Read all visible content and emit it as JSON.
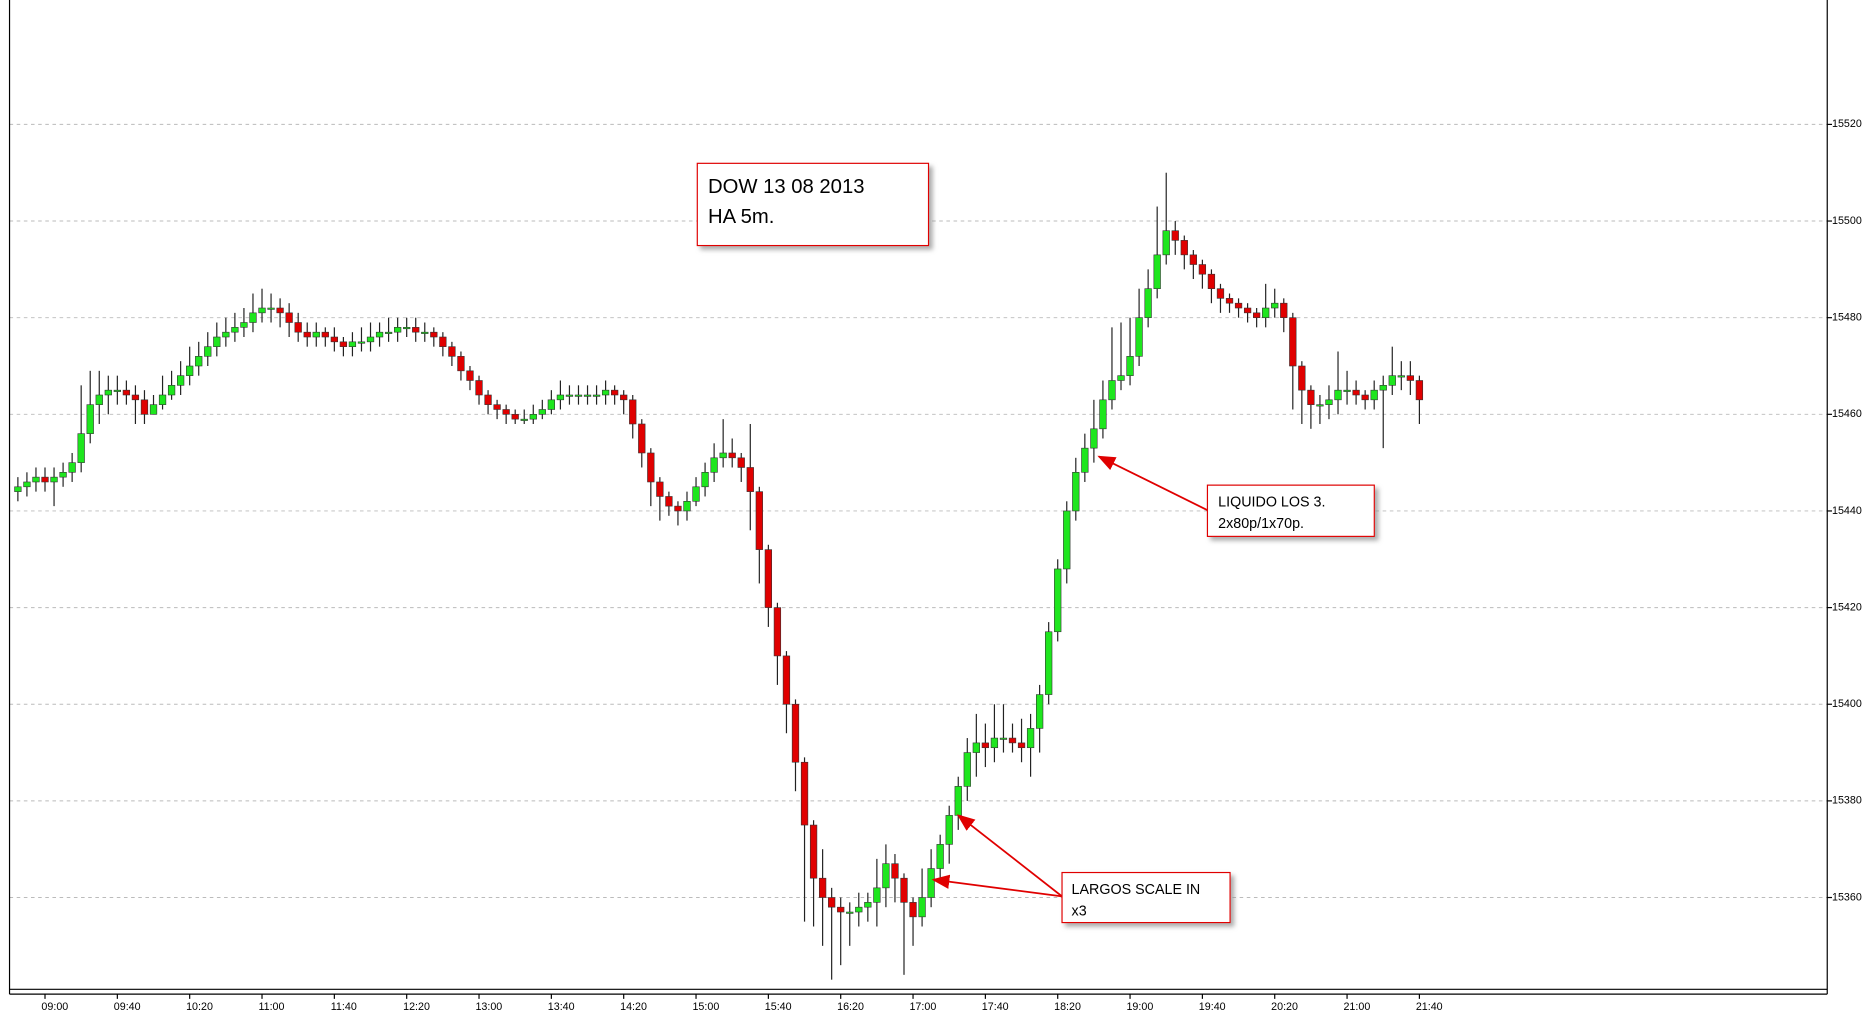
{
  "chart_data": {
    "type": "candlestick",
    "categories": [
      null,
      null,
      null,
      "09:00",
      null,
      null,
      null,
      null,
      null,
      null,
      null,
      "09:40",
      null,
      null,
      null,
      null,
      null,
      null,
      null,
      "10:20",
      null,
      null,
      null,
      null,
      null,
      null,
      null,
      "11:00",
      null,
      null,
      null,
      null,
      null,
      null,
      null,
      "11:40",
      null,
      null,
      null,
      null,
      null,
      null,
      null,
      "12:20",
      null,
      null,
      null,
      null,
      null,
      null,
      null,
      "13:00",
      null,
      null,
      null,
      null,
      null,
      null,
      null,
      "13:40",
      null,
      null,
      null,
      null,
      null,
      null,
      null,
      "14:20",
      null,
      null,
      null,
      null,
      null,
      null,
      null,
      "15:00",
      null,
      null,
      null,
      null,
      null,
      null,
      null,
      "15:40",
      null,
      null,
      null,
      null,
      null,
      null,
      null,
      "16:20",
      null,
      null,
      null,
      null,
      null,
      null,
      null,
      "17:00",
      null,
      null,
      null,
      null,
      null,
      null,
      null,
      "17:40",
      null,
      null,
      null,
      null,
      null,
      null,
      null,
      "18:20",
      null,
      null,
      null,
      null,
      null,
      null,
      null,
      "19:00",
      null,
      null,
      null,
      null,
      null,
      null,
      null,
      "19:40",
      null,
      null,
      null,
      null,
      null,
      null,
      null,
      "20:20",
      null,
      null,
      null,
      null,
      null,
      null,
      null,
      "21:00",
      null,
      null,
      null,
      null,
      null,
      null,
      null,
      "21:40"
    ],
    "open": [
      15444,
      15445,
      15446,
      15447,
      15446,
      15447,
      15448,
      15450,
      15456,
      15462,
      15464,
      15465,
      15465,
      15464,
      15463,
      15460,
      15462,
      15464,
      15466,
      15468,
      15470,
      15472,
      15474,
      15476,
      15477,
      15478,
      15479,
      15481,
      15482,
      15482,
      15481,
      15479,
      15477,
      15476,
      15477,
      15476,
      15475,
      15474,
      15475,
      15475,
      15476,
      15477,
      15477,
      15478,
      15478,
      15477,
      15477,
      15476,
      15474,
      15472,
      15469,
      15467,
      15464,
      15462,
      15461,
      15460,
      15459,
      15459,
      15460,
      15461,
      15463,
      15464,
      15464,
      15464,
      15464,
      15464,
      15465,
      15464,
      15463,
      15458,
      15452,
      15446,
      15443,
      15441,
      15440,
      15442,
      15445,
      15448,
      15451,
      15452,
      15451,
      15449,
      15444,
      15432,
      15420,
      15410,
      15400,
      15388,
      15375,
      15364,
      15360,
      15358,
      15357,
      15357,
      15358,
      15359,
      15362,
      15367,
      15364,
      15359,
      15356,
      15360,
      15366,
      15371,
      15377,
      15383,
      15390,
      15392,
      15391,
      15393,
      15393,
      15392,
      15391,
      15395,
      15402,
      15415,
      15428,
      15440,
      15448,
      15453,
      15457,
      15463,
      15467,
      15468,
      15472,
      15480,
      15486,
      15493,
      15498,
      15496,
      15493,
      15491,
      15489,
      15486,
      15484,
      15483,
      15482,
      15481,
      15480,
      15482,
      15483,
      15480,
      15470,
      15465,
      15462,
      15462,
      15463,
      15465,
      15465,
      15464,
      15463,
      15465,
      15466,
      15468,
      15468,
      15467
    ],
    "high": [
      15447,
      15448,
      15449,
      15449,
      15449,
      15450,
      15452,
      15466,
      15469,
      15469,
      15468,
      15468,
      15467,
      15466,
      15465,
      15464,
      15468,
      15469,
      15471,
      15474,
      15475,
      15477,
      15479,
      15480,
      15481,
      15482,
      15485,
      15486,
      15485,
      15484,
      15483,
      15481,
      15479,
      15479,
      15478,
      15478,
      15476,
      15477,
      15478,
      15479,
      15479,
      15480,
      15480,
      15480,
      15480,
      15479,
      15478,
      15477,
      15475,
      15473,
      15470,
      15468,
      15465,
      15463,
      15462,
      15461,
      15461,
      15462,
      15463,
      15465,
      15467,
      15466,
      15466,
      15466,
      15466,
      15467,
      15466,
      15465,
      15464,
      15459,
      15453,
      15447,
      15444,
      15442,
      15444,
      15447,
      15450,
      15454,
      15459,
      15455,
      15452,
      15458,
      15445,
      15433,
      15421,
      15411,
      15401,
      15389,
      15376,
      15370,
      15362,
      15360,
      15359,
      15361,
      15361,
      15368,
      15371,
      15369,
      15365,
      15360,
      15366,
      15370,
      15373,
      15379,
      15385,
      15393,
      15398,
      15396,
      15400,
      15400,
      15396,
      15397,
      15398,
      15404,
      15417,
      15430,
      15442,
      15451,
      15456,
      15463,
      15467,
      15478,
      15479,
      15480,
      15486,
      15490,
      15503,
      15510,
      15500,
      15497,
      15494,
      15492,
      15490,
      15487,
      15485,
      15484,
      15483,
      15482,
      15487,
      15486,
      15484,
      15481,
      15471,
      15466,
      15464,
      15466,
      15473,
      15469,
      15467,
      15465,
      15467,
      15468,
      15474,
      15471,
      15471,
      15468
    ],
    "low": [
      15442,
      15443,
      15444,
      15444,
      15441,
      15445,
      15446,
      15448,
      15454,
      15458,
      15460,
      15462,
      15462,
      15458,
      15458,
      15460,
      15461,
      15463,
      15464,
      15466,
      15468,
      15470,
      15472,
      15474,
      15475,
      15476,
      15477,
      15479,
      15479,
      15478,
      15476,
      15475,
      15474,
      15474,
      15474,
      15473,
      15472,
      15472,
      15473,
      15473,
      15474,
      15475,
      15475,
      15476,
      15475,
      15475,
      15474,
      15472,
      15470,
      15467,
      15465,
      15462,
      15460,
      15459,
      15458,
      15458,
      15458,
      15458,
      15459,
      15460,
      15461,
      15462,
      15462,
      15462,
      15462,
      15462,
      15462,
      15460,
      15455,
      15449,
      15441,
      15438,
      15439,
      15437,
      15438,
      15441,
      15443,
      15446,
      15449,
      15449,
      15446,
      15436,
      15425,
      15416,
      15404,
      15394,
      15382,
      15355,
      15354,
      15350,
      15343,
      15346,
      15350,
      15354,
      15355,
      15354,
      15358,
      15359,
      15344,
      15350,
      15354,
      15358,
      15363,
      15367,
      15374,
      15380,
      15385,
      15387,
      15388,
      15390,
      15390,
      15388,
      15385,
      15390,
      15400,
      15413,
      15425,
      15438,
      15446,
      15450,
      15455,
      15461,
      15465,
      15466,
      15470,
      15478,
      15484,
      15491,
      15493,
      15490,
      15488,
      15486,
      15483,
      15481,
      15481,
      15480,
      15479,
      15478,
      15478,
      15480,
      15477,
      15461,
      15458,
      15457,
      15458,
      15459,
      15460,
      15462,
      15462,
      15461,
      15461,
      15453,
      15464,
      15465,
      15464,
      15458
    ],
    "close": [
      15445,
      15446,
      15447,
      15446,
      15447,
      15448,
      15450,
      15456,
      15462,
      15464,
      15465,
      15465,
      15464,
      15463,
      15460,
      15462,
      15464,
      15466,
      15468,
      15470,
      15472,
      15474,
      15476,
      15477,
      15478,
      15479,
      15481,
      15482,
      15482,
      15481,
      15479,
      15477,
      15476,
      15477,
      15476,
      15475,
      15474,
      15475,
      15475,
      15476,
      15477,
      15477,
      15478,
      15478,
      15477,
      15477,
      15476,
      15474,
      15472,
      15469,
      15467,
      15464,
      15462,
      15461,
      15460,
      15459,
      15459,
      15460,
      15461,
      15463,
      15464,
      15464,
      15464,
      15464,
      15464,
      15465,
      15464,
      15463,
      15458,
      15452,
      15446,
      15443,
      15441,
      15440,
      15442,
      15445,
      15448,
      15451,
      15452,
      15451,
      15449,
      15444,
      15432,
      15420,
      15410,
      15400,
      15388,
      15375,
      15364,
      15360,
      15358,
      15357,
      15357,
      15358,
      15359,
      15362,
      15367,
      15364,
      15359,
      15356,
      15360,
      15366,
      15371,
      15377,
      15383,
      15390,
      15392,
      15391,
      15393,
      15393,
      15392,
      15391,
      15395,
      15402,
      15415,
      15428,
      15440,
      15448,
      15453,
      15457,
      15463,
      15467,
      15468,
      15472,
      15480,
      15486,
      15493,
      15498,
      15496,
      15493,
      15491,
      15489,
      15486,
      15484,
      15483,
      15482,
      15481,
      15480,
      15482,
      15483,
      15480,
      15470,
      15465,
      15462,
      15462,
      15463,
      15465,
      15465,
      15464,
      15463,
      15465,
      15466,
      15468,
      15468,
      15467,
      15463
    ],
    "up_color": "#1ee61e",
    "down_color": "#e00000",
    "ylim": [
      15341,
      15545
    ],
    "yticks": [
      15360,
      15380,
      15400,
      15420,
      15440,
      15460,
      15480,
      15500,
      15520
    ],
    "grid": true,
    "annotations": [
      [
        "DOW 13 08 2013",
        "HA 5m."
      ],
      [
        "LIQUIDO LOS 3.",
        "2x80p/1x70p."
      ],
      [
        "LARGOS SCALE IN",
        "x3"
      ]
    ]
  }
}
